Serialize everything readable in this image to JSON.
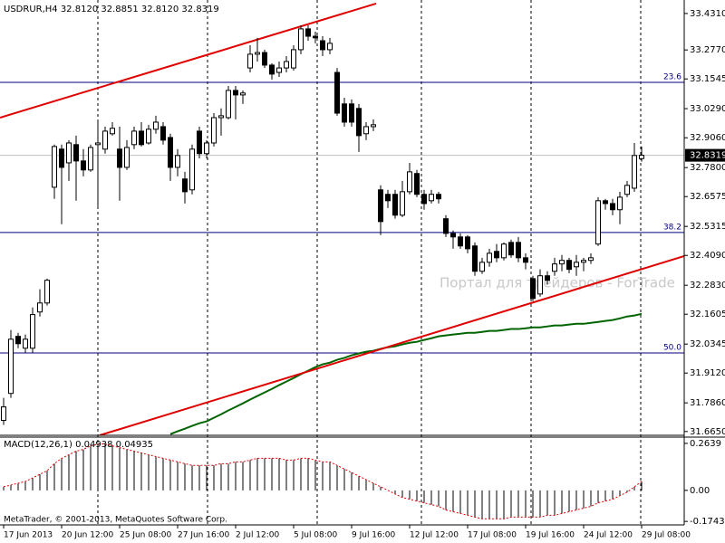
{
  "chart_data": [
    {
      "type": "candlestick",
      "title": "USDRUR,H4  32.8120 32.8851 32.8120 32.8319",
      "watermark": "Портал для трейдеров - ForTrade",
      "copyright": "MetaTrader, © 2001-2013, MetaQuotes Software Corp.",
      "categories": [
        "17 Jun 2013",
        null,
        null,
        null,
        null,
        null,
        null,
        null,
        "20 Jun 12:00",
        null,
        null,
        null,
        null,
        null,
        null,
        null,
        "25 Jun 08:00",
        null,
        null,
        null,
        null,
        null,
        null,
        null,
        "27 Jun 16:00",
        null,
        null,
        null,
        null,
        null,
        null,
        null,
        "2 Jul 12:00",
        null,
        null,
        null,
        null,
        null,
        null,
        null,
        "5 Jul 08:00",
        null,
        null,
        null,
        null,
        null,
        null,
        null,
        "9 Jul 16:00",
        null,
        null,
        null,
        null,
        null,
        null,
        null,
        "12 Jul 12:00",
        null,
        null,
        null,
        null,
        null,
        null,
        null,
        "17 Jul 08:00",
        null,
        null,
        null,
        null,
        null,
        null,
        null,
        "19 Jul 16:00",
        null,
        null,
        null,
        null,
        null,
        null,
        null,
        "24 Jul 12:00",
        null,
        null,
        null,
        null,
        null,
        null,
        null,
        "29 Jul 08:00"
      ],
      "open": [
        31.712,
        31.826,
        32.067,
        32.017,
        32.017,
        32.17,
        32.208,
        32.697,
        32.858,
        32.8,
        32.877,
        32.808,
        32.77,
        32.877,
        32.858,
        32.923,
        32.858,
        32.781,
        32.877,
        32.934,
        32.884,
        32.942,
        32.953,
        32.907,
        32.781,
        32.732,
        32.686,
        32.934,
        32.839,
        32.884,
        32.991,
        32.991,
        33.106,
        33.087,
        33.201,
        33.259,
        33.266,
        33.213,
        33.182,
        33.201,
        33.201,
        33.278,
        33.366,
        33.335,
        33.316,
        33.278,
        33.182,
        33.049,
        33.049,
        33.03,
        32.923,
        32.953,
        32.686,
        32.667,
        32.667,
        32.579,
        32.678,
        32.755,
        32.667,
        32.64,
        32.667,
        32.564,
        32.502,
        32.487,
        32.487,
        32.449,
        32.342,
        32.38,
        32.426,
        32.399,
        32.464,
        32.464,
        32.399,
        32.311,
        32.246,
        32.323,
        32.342,
        32.373,
        32.388,
        32.361,
        32.38,
        32.388,
        32.457,
        32.64,
        32.628,
        32.602,
        32.667,
        32.693,
        32.818
      ],
      "high": [
        31.807,
        32.094,
        32.082,
        32.075,
        32.189,
        32.266,
        32.311,
        32.877,
        32.877,
        32.896,
        32.915,
        32.858,
        32.877,
        32.972,
        32.953,
        32.972,
        32.953,
        32.896,
        32.953,
        32.972,
        32.961,
        32.999,
        32.972,
        32.923,
        32.858,
        32.762,
        32.877,
        32.953,
        32.896,
        33.01,
        33.03,
        33.125,
        33.125,
        33.106,
        33.297,
        33.328,
        33.278,
        33.221,
        33.228,
        33.251,
        33.297,
        33.381,
        33.381,
        33.354,
        33.335,
        33.328,
        33.201,
        33.075,
        33.068,
        33.049,
        32.972,
        32.984,
        32.705,
        32.686,
        32.686,
        32.724,
        32.8,
        32.77,
        32.686,
        32.686,
        32.678,
        32.579,
        32.514,
        32.502,
        32.495,
        32.464,
        32.399,
        32.437,
        32.457,
        32.464,
        32.476,
        32.487,
        32.418,
        32.323,
        32.35,
        32.342,
        32.399,
        32.411,
        32.399,
        32.411,
        32.399,
        32.418,
        32.655,
        32.648,
        32.648,
        32.678,
        32.724,
        32.884,
        32.869
      ],
      "low": [
        31.693,
        31.807,
        32.017,
        31.998,
        31.998,
        32.151,
        32.197,
        32.648,
        32.541,
        32.724,
        32.64,
        32.743,
        32.762,
        32.617,
        32.839,
        32.915,
        32.64,
        32.77,
        32.858,
        32.869,
        32.877,
        32.923,
        32.877,
        32.724,
        32.743,
        32.628,
        32.667,
        32.819,
        32.819,
        32.869,
        32.915,
        32.984,
        32.984,
        33.049,
        33.182,
        33.228,
        33.201,
        33.152,
        33.163,
        33.182,
        33.19,
        33.259,
        33.316,
        33.305,
        33.251,
        33.259,
        32.999,
        32.953,
        32.953,
        32.846,
        32.896,
        32.934,
        32.495,
        32.609,
        32.564,
        32.571,
        32.667,
        32.655,
        32.602,
        32.628,
        32.628,
        32.487,
        32.437,
        32.437,
        32.418,
        32.323,
        32.331,
        32.361,
        32.38,
        32.388,
        32.399,
        32.38,
        32.35,
        32.216,
        32.235,
        32.285,
        32.323,
        32.342,
        32.334,
        32.323,
        32.342,
        32.373,
        32.449,
        32.602,
        32.579,
        32.541,
        32.655,
        32.678,
        32.805
      ],
      "close": [
        31.769,
        32.055,
        32.036,
        32.055,
        32.159,
        32.208,
        32.304,
        32.869,
        32.781,
        32.884,
        32.808,
        32.77,
        32.865,
        32.884,
        32.934,
        32.946,
        32.781,
        32.865,
        32.934,
        32.877,
        32.942,
        32.972,
        32.896,
        32.781,
        32.831,
        32.678,
        32.858,
        32.839,
        32.884,
        32.991,
        32.999,
        33.106,
        33.087,
        33.095,
        33.259,
        33.266,
        33.213,
        33.175,
        33.201,
        33.228,
        33.278,
        33.366,
        33.335,
        33.328,
        33.278,
        33.305,
        33.01,
        32.972,
        32.972,
        32.915,
        32.953,
        32.961,
        32.552,
        32.64,
        32.579,
        32.678,
        32.762,
        32.667,
        32.628,
        32.667,
        32.648,
        32.502,
        32.487,
        32.449,
        32.437,
        32.342,
        32.38,
        32.418,
        32.399,
        32.457,
        32.411,
        32.399,
        32.38,
        32.227,
        32.323,
        32.304,
        32.373,
        32.388,
        32.35,
        32.38,
        32.388,
        32.399,
        32.64,
        32.628,
        32.602,
        32.655,
        32.705,
        32.831,
        32.832
      ],
      "up_color": "#ffffff",
      "down_color": "#000000",
      "ylim": [
        31.649,
        33.488
      ],
      "yticks": [
        {
          "value": 33.431,
          "label": "33.4310"
        },
        {
          "value": 33.277,
          "label": "33.2770"
        },
        33.1545,
        {
          "value": 33.029,
          "label": "33.0290"
        },
        {
          "value": 32.906,
          "label": "32.9060"
        },
        {
          "value": 32.78,
          "label": "32.7800"
        },
        32.6575,
        32.5315,
        {
          "value": 32.409,
          "label": "32.4090"
        },
        {
          "value": 32.283,
          "label": "32.2830"
        },
        32.1605,
        32.0345,
        {
          "value": 31.912,
          "label": "31.9120"
        },
        {
          "value": 31.786,
          "label": "31.7860"
        },
        {
          "value": 31.665,
          "label": "31.6650"
        }
      ],
      "current_price": 32.8319,
      "current_color": "#c0c0c0",
      "levels": [
        {
          "value": 33.14,
          "label": "23.6"
        },
        {
          "value": 32.506,
          "label": "38.2"
        },
        {
          "value": 31.997,
          "label": "50.0"
        }
      ],
      "level_color": "#000080",
      "trendlines": [
        {
          "color": "#e00000",
          "values": [
            32.991,
            33.473
          ]
        },
        {
          "color": "#e00000",
          "values": [
            31.649,
            32.406
          ]
        }
      ],
      "moving_average": {
        "color": "#006400",
        "values": [
          null,
          null,
          null,
          null,
          null,
          null,
          null,
          null,
          null,
          null,
          null,
          null,
          null,
          null,
          null,
          null,
          null,
          null,
          null,
          null,
          null,
          null,
          null,
          31.654,
          31.666,
          31.677,
          31.689,
          31.7,
          31.708,
          31.723,
          31.738,
          31.754,
          31.769,
          31.784,
          31.8,
          31.815,
          31.83,
          31.845,
          31.861,
          31.876,
          31.891,
          31.907,
          31.922,
          31.937,
          31.949,
          31.956,
          31.968,
          31.976,
          31.987,
          31.995,
          32.002,
          32.006,
          32.014,
          32.021,
          32.025,
          32.033,
          32.04,
          32.044,
          32.052,
          32.059,
          32.067,
          32.071,
          32.075,
          32.078,
          32.082,
          32.082,
          32.086,
          32.09,
          32.09,
          32.094,
          32.098,
          32.098,
          32.101,
          32.105,
          32.105,
          32.109,
          32.113,
          32.113,
          32.117,
          32.12,
          32.12,
          32.124,
          32.128,
          32.132,
          32.136,
          32.143,
          32.151,
          32.155,
          32.162
        ]
      }
    },
    {
      "type": "macd",
      "title": "MACD(12,26,1) 0.04938 0.04935",
      "color": "#000000",
      "values": [
        0.02,
        0.03,
        0.04,
        0.05,
        0.07,
        0.09,
        0.11,
        0.15,
        0.18,
        0.2,
        0.22,
        0.23,
        0.25,
        0.26,
        0.26,
        0.25,
        0.24,
        0.23,
        0.22,
        0.21,
        0.2,
        0.19,
        0.18,
        0.17,
        0.16,
        0.15,
        0.14,
        0.14,
        0.14,
        0.14,
        0.15,
        0.15,
        0.16,
        0.16,
        0.17,
        0.18,
        0.18,
        0.18,
        0.18,
        0.17,
        0.17,
        0.18,
        0.18,
        0.17,
        0.16,
        0.16,
        0.14,
        0.12,
        0.1,
        0.08,
        0.06,
        0.04,
        0.02,
        0.0,
        -0.02,
        -0.04,
        -0.05,
        -0.06,
        -0.07,
        -0.08,
        -0.09,
        -0.11,
        -0.12,
        -0.13,
        -0.14,
        -0.15,
        -0.16,
        -0.16,
        -0.16,
        -0.16,
        -0.15,
        -0.15,
        -0.15,
        -0.15,
        -0.15,
        -0.14,
        -0.14,
        -0.13,
        -0.12,
        -0.11,
        -0.1,
        -0.09,
        -0.07,
        -0.06,
        -0.05,
        -0.03,
        -0.01,
        0.02,
        0.05
      ],
      "signal": {
        "color": "#e00000",
        "values": [
          0.02,
          0.03,
          0.04,
          0.05,
          0.07,
          0.09,
          0.11,
          0.15,
          0.18,
          0.2,
          0.22,
          0.23,
          0.25,
          0.26,
          0.26,
          0.25,
          0.24,
          0.23,
          0.22,
          0.21,
          0.2,
          0.19,
          0.18,
          0.17,
          0.16,
          0.15,
          0.14,
          0.14,
          0.14,
          0.14,
          0.15,
          0.15,
          0.16,
          0.16,
          0.17,
          0.18,
          0.18,
          0.18,
          0.18,
          0.17,
          0.17,
          0.18,
          0.18,
          0.17,
          0.16,
          0.16,
          0.14,
          0.12,
          0.1,
          0.08,
          0.06,
          0.04,
          0.02,
          0.0,
          -0.02,
          -0.04,
          -0.05,
          -0.06,
          -0.07,
          -0.08,
          -0.09,
          -0.11,
          -0.12,
          -0.13,
          -0.14,
          -0.15,
          -0.16,
          -0.16,
          -0.16,
          -0.16,
          -0.15,
          -0.15,
          -0.15,
          -0.15,
          -0.15,
          -0.14,
          -0.14,
          -0.13,
          -0.12,
          -0.11,
          -0.1,
          -0.09,
          -0.07,
          -0.06,
          -0.05,
          -0.03,
          -0.01,
          0.02,
          0.05
        ]
      },
      "ylim": [
        -0.194,
        0.299
      ],
      "yticks": [
        0.2639,
        {
          "value": 0,
          "label": "0.00"
        },
        -0.17437
      ]
    }
  ]
}
